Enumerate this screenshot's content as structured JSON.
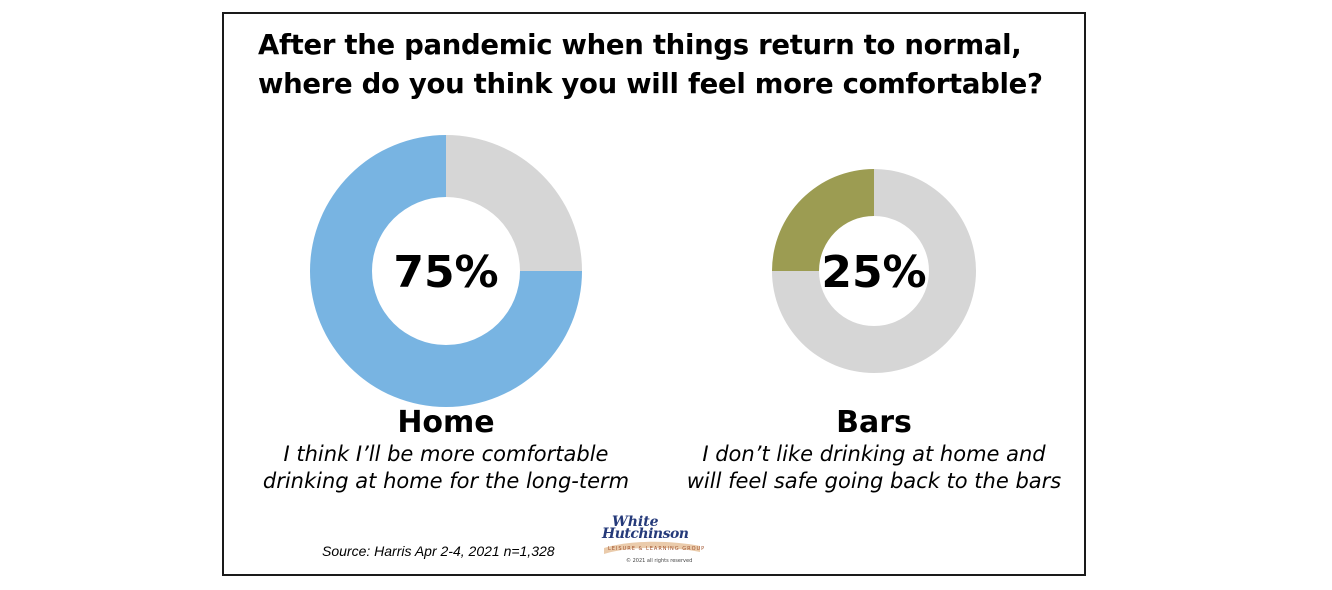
{
  "chart_data": {
    "type": "pie",
    "title_lines": [
      "After the pandemic when things return to normal,",
      "where do you think you will feel more comfortable?"
    ],
    "slices": [
      {
        "label": "Home",
        "value": 75,
        "value_label": "75%",
        "description_lines": [
          "I think I’ll be more comfortable",
          "drinking at home for the long-term"
        ],
        "color": "#78b4e2",
        "remainder_color": "#d6d6d6"
      },
      {
        "label": "Bars",
        "value": 25,
        "value_label": "25%",
        "description_lines": [
          "I don’t like drinking at home and",
          "will feel safe going back to the bars"
        ],
        "color": "#9c9c52",
        "remainder_color": "#d6d6d6"
      }
    ],
    "source": "Source: Harris Apr 2-4, 2021 n=1,328"
  },
  "logo": {
    "line1": "White",
    "line2": "Hutchinson",
    "tagline": "LEISURE & LEARNING GROUP",
    "copyright": "© 2021 all rights reserved"
  }
}
